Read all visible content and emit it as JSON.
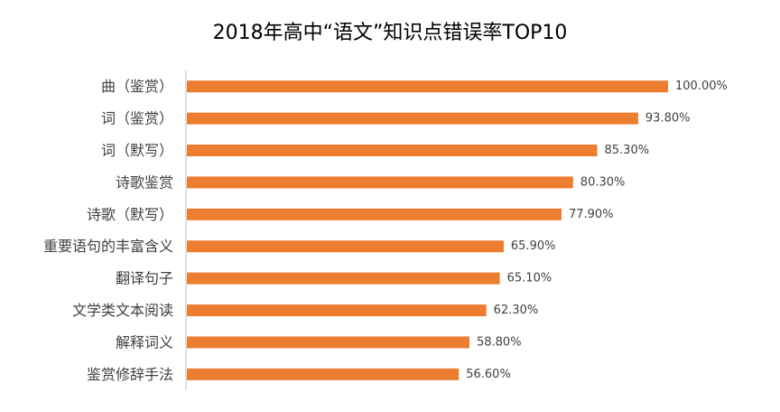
{
  "chart_data": {
    "type": "bar",
    "orientation": "horizontal",
    "title": "2018年高中“语文”知识点错误率TOP10",
    "categories": [
      "曲（鉴赏）",
      "词（鉴赏）",
      "词（默写）",
      "诗歌鉴赏",
      "诗歌（默写）",
      "重要语句的丰富含义",
      "翻译句子",
      "文学类文本阅读",
      "解释词义",
      "鉴赏修辞手法"
    ],
    "values": [
      100.0,
      93.8,
      85.3,
      80.3,
      77.9,
      65.9,
      65.1,
      62.3,
      58.8,
      56.6
    ],
    "data_labels": [
      "100.00%",
      "93.80%",
      "85.30%",
      "80.30%",
      "77.90%",
      "65.90%",
      "65.10%",
      "62.30%",
      "58.80%",
      "56.60%"
    ],
    "unit": "%",
    "xlim": [
      0,
      100
    ],
    "grid": false,
    "legend": "none",
    "bar_color": "#ED7D31",
    "axis_color": "#BFBFBF",
    "text_color": "#404040"
  }
}
